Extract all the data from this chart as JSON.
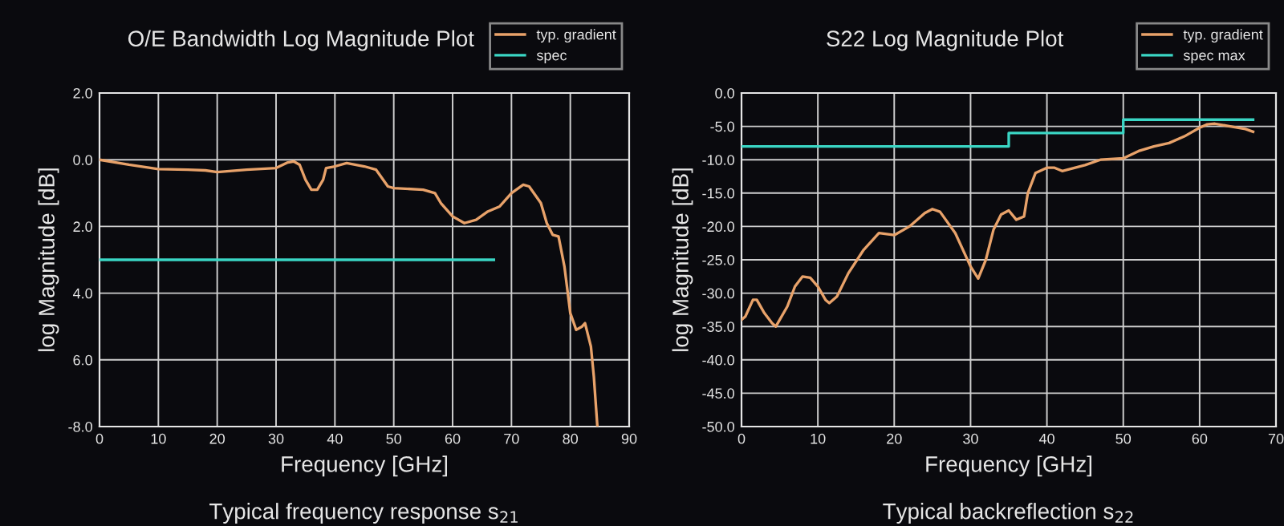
{
  "chart_data": [
    {
      "type": "line",
      "title": "O/E Bandwidth Log Magnitude Plot",
      "xlabel": "Frequency [GHz]",
      "ylabel": "log Magnitude [dB]",
      "annotations": [
        "Typical frequency response s$_{21}$"
      ],
      "xlim": [
        0,
        90
      ],
      "xticks": [
        0,
        10,
        20,
        30,
        40,
        50,
        60,
        70,
        80,
        90
      ],
      "ylim": [
        -8,
        2
      ],
      "yticks": [
        {
          "value": 2,
          "label": "2.0"
        },
        {
          "value": 0,
          "label": "0.0"
        },
        {
          "value": -2,
          "label": "2.0"
        },
        {
          "value": -4,
          "label": "4.0"
        },
        {
          "value": -6,
          "label": "6.0"
        },
        {
          "value": -8,
          "label": "-8.0"
        }
      ],
      "grid": true,
      "legend": "top right",
      "series": [
        {
          "name": "typ. gradient",
          "color": "#e8a26a",
          "x": [
            0,
            5,
            10,
            15,
            18,
            20,
            25,
            30,
            32,
            33,
            34,
            35,
            36,
            37,
            38,
            38.5,
            40,
            42,
            45,
            47,
            49,
            50,
            55,
            57,
            58,
            60,
            62,
            64,
            66,
            68,
            70,
            72,
            73,
            75,
            76,
            77,
            78,
            79,
            80,
            81,
            82,
            82.5,
            83.5,
            84,
            84.6
          ],
          "values": [
            0,
            -0.15,
            -0.28,
            -0.3,
            -0.32,
            -0.37,
            -0.3,
            -0.25,
            -0.08,
            -0.05,
            -0.15,
            -0.6,
            -0.9,
            -0.9,
            -0.6,
            -0.25,
            -0.2,
            -0.1,
            -0.2,
            -0.3,
            -0.8,
            -0.85,
            -0.9,
            -1.0,
            -1.3,
            -1.7,
            -1.9,
            -1.8,
            -1.55,
            -1.4,
            -1.0,
            -0.75,
            -0.8,
            -1.3,
            -1.9,
            -2.25,
            -2.3,
            -3.2,
            -4.6,
            -5.1,
            -5.0,
            -4.9,
            -5.6,
            -6.5,
            -8
          ]
        },
        {
          "name": "spec",
          "color": "#3ad6c4",
          "x": [
            0,
            67
          ],
          "values": [
            -3,
            -3
          ]
        }
      ]
    },
    {
      "type": "line",
      "title": "S22 Log Magnitude Plot",
      "xlabel": "Frequency [GHz]",
      "ylabel": "log Magnitude [dB]",
      "annotations": [
        "Typical backreflection s$_{22}$"
      ],
      "xlim": [
        0,
        70
      ],
      "xticks": [
        0,
        10,
        20,
        30,
        40,
        50,
        60,
        70
      ],
      "ylim": [
        -50,
        0
      ],
      "yticks": [
        {
          "value": 0,
          "label": "0.0"
        },
        {
          "value": -5,
          "label": "-5.0"
        },
        {
          "value": -10,
          "label": "-10.0"
        },
        {
          "value": -15,
          "label": "-15.0"
        },
        {
          "value": -20,
          "label": "-20.0"
        },
        {
          "value": -25,
          "label": "-25.0"
        },
        {
          "value": -30,
          "label": "-30.0"
        },
        {
          "value": -35,
          "label": "-35.0"
        },
        {
          "value": -40,
          "label": "-40.0"
        },
        {
          "value": -45,
          "label": "-45.0"
        },
        {
          "value": -50,
          "label": "-50.0"
        }
      ],
      "grid": true,
      "legend": "top right",
      "series": [
        {
          "name": "typ. gradient",
          "color": "#e8a26a",
          "x": [
            0,
            0.5,
            1.5,
            2,
            3,
            4,
            4.5,
            6,
            7,
            8,
            9,
            10,
            11,
            11.5,
            12.5,
            14,
            16,
            18,
            20,
            22,
            24,
            25,
            26,
            28,
            30,
            31,
            32,
            33,
            34,
            35,
            36,
            37,
            37.5,
            38.5,
            40,
            41,
            42,
            45,
            47,
            50,
            52,
            54,
            56,
            58,
            60,
            61,
            62,
            64,
            66,
            67
          ],
          "values": [
            -34,
            -33.5,
            -31,
            -31,
            -33,
            -34.5,
            -35,
            -32,
            -29,
            -27.5,
            -27.7,
            -29,
            -31,
            -31.5,
            -30.5,
            -27,
            -23.5,
            -21,
            -21.3,
            -20,
            -18,
            -17.4,
            -17.8,
            -21,
            -26,
            -27.8,
            -25,
            -20.5,
            -18.2,
            -17.6,
            -19,
            -18.5,
            -15,
            -12,
            -11.2,
            -11.2,
            -11.7,
            -10.8,
            -10,
            -9.8,
            -8.7,
            -8,
            -7.5,
            -6.5,
            -5.2,
            -4.7,
            -4.6,
            -5,
            -5.4,
            -5.8
          ]
        },
        {
          "name": "spec max",
          "type": "step",
          "color": "#3ad6c4",
          "x": [
            0,
            35,
            50,
            67
          ],
          "values": [
            -8,
            -6,
            -4,
            -4
          ]
        }
      ]
    }
  ]
}
